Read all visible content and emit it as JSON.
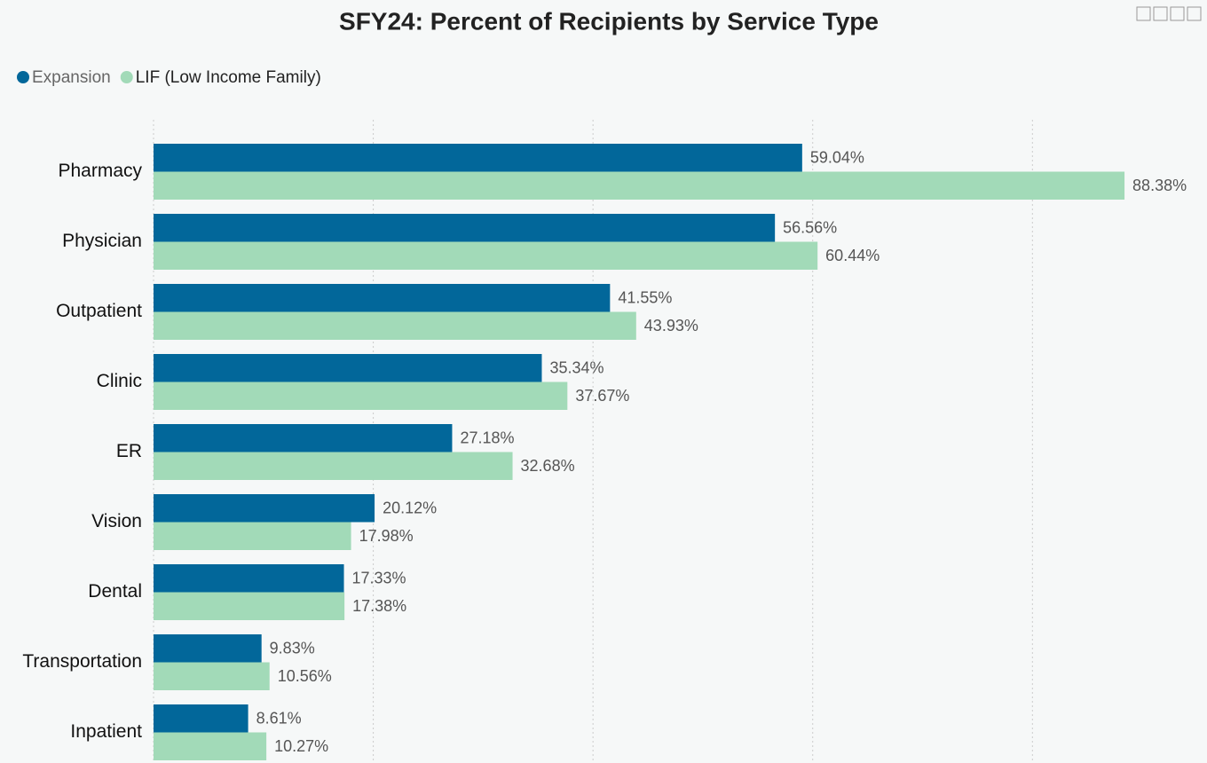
{
  "chart_data": {
    "type": "hbar",
    "title": "SFY24: Percent of Recipients by Service Type",
    "categories": [
      "Pharmacy",
      "Physician",
      "Outpatient",
      "Clinic",
      "ER",
      "Vision",
      "Dental",
      "Transportation",
      "Inpatient"
    ],
    "series": [
      {
        "name": "Expansion",
        "color": "#02679a",
        "values": [
          59.04,
          56.56,
          41.55,
          35.34,
          27.18,
          20.12,
          17.33,
          9.83,
          8.61
        ],
        "value_labels": [
          "59.04%",
          "56.56%",
          "41.55%",
          "35.34%",
          "27.18%",
          "20.12%",
          "17.33%",
          "9.83%",
          "8.61%"
        ]
      },
      {
        "name": "LIF (Low Income Family)",
        "color": "#a2dab8",
        "values": [
          88.38,
          60.44,
          43.93,
          37.67,
          32.68,
          17.98,
          17.38,
          10.56,
          10.27
        ],
        "value_labels": [
          "88.38%",
          "60.44%",
          "43.93%",
          "37.67%",
          "32.68%",
          "17.98%",
          "17.38%",
          "10.56%",
          "10.27%"
        ]
      }
    ],
    "xlim": [
      0,
      95
    ],
    "xticks": [
      0,
      20,
      40,
      60,
      80
    ],
    "grid": true,
    "legend": "top-left"
  }
}
